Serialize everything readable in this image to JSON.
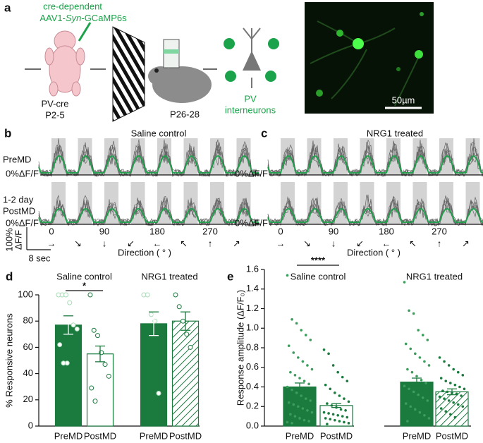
{
  "panel_a": {
    "label": "a",
    "virus_line1": "cre-dependent",
    "virus_line2": [
      "AAV1-",
      "Syn",
      "-GCaMP6s"
    ],
    "pup": [
      "PV-cre",
      "P2-5"
    ],
    "adult": "P26-28",
    "cells": [
      "PV",
      "interneurons"
    ],
    "scale_bar": "50µm"
  },
  "traces": {
    "panels": [
      {
        "label": "b",
        "title": "Saline control"
      },
      {
        "label": "c",
        "title": "NRG1 treated"
      }
    ],
    "rows": [
      "PreMD",
      [
        "1-2 day",
        "PostMD"
      ]
    ],
    "baseline": "0%ΔF/F",
    "scale_y": [
      "100%",
      "ΔF/F"
    ],
    "scale_x": "8 sec",
    "direction_ticks": [
      0,
      90,
      180,
      270
    ],
    "arrows": [
      "→",
      "↘",
      "↓",
      "↙",
      "←",
      "↖",
      "↑",
      "↗"
    ],
    "x_label": "Direction ( ° )"
  },
  "chart_data": [
    {
      "type": "bar",
      "label": "d",
      "groups": [
        "Saline control",
        "NRG1 treated"
      ],
      "categories": [
        "PreMD",
        "PostMD",
        "PreMD",
        "PostMD"
      ],
      "values": [
        77,
        55,
        78,
        80
      ],
      "errors": [
        7,
        6,
        9,
        7
      ],
      "points": [
        [
          100,
          100,
          100,
          94,
          77,
          74,
          62,
          48,
          48
        ],
        [
          100,
          73,
          69,
          56,
          47,
          38,
          29,
          19
        ],
        [
          100,
          100,
          85,
          80,
          25
        ],
        [
          100,
          91,
          80,
          70,
          60
        ]
      ],
      "fills": [
        "solid",
        "open",
        "solid",
        "hatched"
      ],
      "color": "#1b7a3e",
      "y_label": "% Responsive neurons",
      "ylim": [
        0,
        100
      ],
      "yticks": [
        0,
        20,
        40,
        60,
        80,
        100
      ],
      "significance": "*"
    },
    {
      "type": "bar",
      "label": "e",
      "groups": [
        "Saline control",
        "NRG1 treated"
      ],
      "categories": [
        "PreMD",
        "PostMD",
        "PreMD",
        "PostMD"
      ],
      "values": [
        0.4,
        0.21,
        0.45,
        0.35
      ],
      "errors": [
        0.04,
        0.02,
        0.04,
        0.03
      ],
      "points": [
        [
          1.54,
          1.09,
          1.05,
          0.98,
          0.93,
          0.88,
          0.82,
          0.75,
          0.7,
          0.66,
          0.62,
          0.58,
          0.55,
          0.52,
          0.49,
          0.46,
          0.43,
          0.4,
          0.37,
          0.34,
          0.31,
          0.28,
          0.26,
          0.24,
          0.22,
          0.2,
          0.18,
          0.16,
          0.14,
          0.12,
          0.1,
          0.08,
          0.06,
          0.05,
          0.04,
          0.03
        ],
        [
          0.78,
          0.74,
          0.62,
          0.55,
          0.5,
          0.46,
          0.42,
          0.38,
          0.34,
          0.31,
          0.28,
          0.25,
          0.23,
          0.21,
          0.19,
          0.17,
          0.16,
          0.14,
          0.13,
          0.12,
          0.11,
          0.1,
          0.09,
          0.08,
          0.07,
          0.06,
          0.05,
          0.04,
          0.03,
          0.02
        ],
        [
          1.47,
          1.18,
          1.15,
          0.98,
          0.93,
          0.88,
          0.84,
          0.79,
          0.74,
          0.7,
          0.66,
          0.62,
          0.58,
          0.55,
          0.51,
          0.47,
          0.44,
          0.41,
          0.38,
          0.35,
          0.32,
          0.29,
          0.26,
          0.23,
          0.2,
          0.17,
          0.14,
          0.11,
          0.08,
          0.05
        ],
        [
          0.7,
          0.66,
          0.62,
          0.58,
          0.55,
          0.52,
          0.49,
          0.46,
          0.44,
          0.42,
          0.4,
          0.38,
          0.36,
          0.35,
          0.34,
          0.33,
          0.31,
          0.3,
          0.28,
          0.26,
          0.24,
          0.22,
          0.2,
          0.18,
          0.15,
          0.12,
          0.09
        ]
      ],
      "fills": [
        "solid",
        "open",
        "solid",
        "hatched"
      ],
      "color": "#1b7a3e",
      "y_label": "Response amplitude (ΔF/F₀)",
      "ylim": [
        0,
        1.6
      ],
      "yticks": [
        {
          "value": 0,
          "label": "0.0"
        },
        0.2,
        0.4,
        0.6,
        0.8,
        {
          "value": 1,
          "label": "1.0"
        },
        1.2,
        1.4,
        1.6
      ],
      "significance": "****"
    }
  ]
}
